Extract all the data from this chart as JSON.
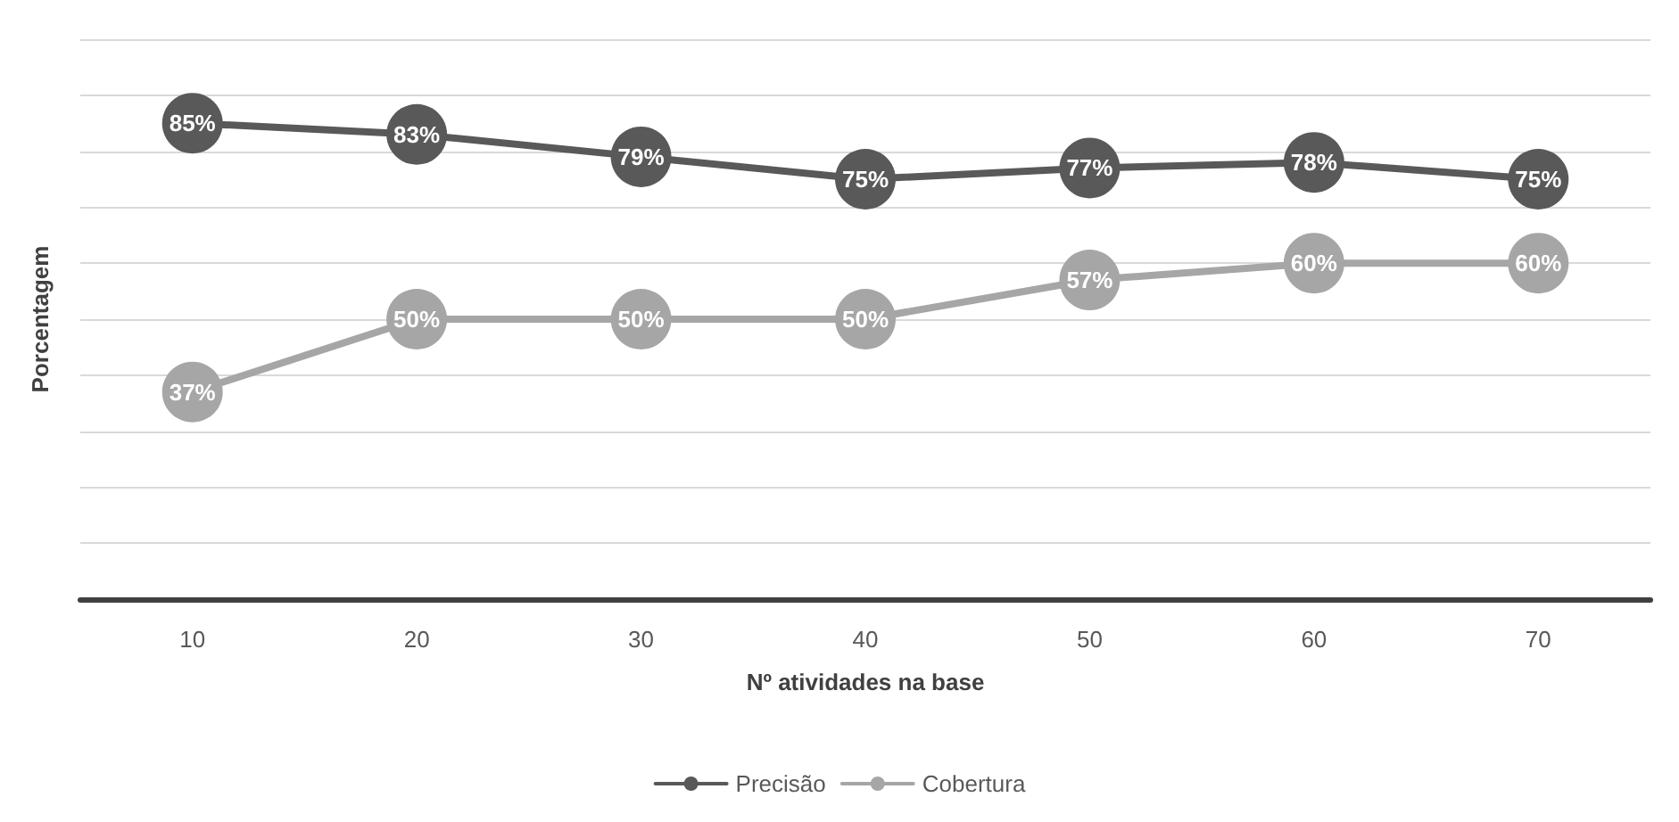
{
  "chart_data": {
    "type": "line",
    "xlabel": "Nº atividades na base",
    "ylabel": "Porcentagem",
    "categories": [
      "10",
      "20",
      "30",
      "40",
      "50",
      "60",
      "70"
    ],
    "series": [
      {
        "name": "Precisão",
        "color": "#595959",
        "values": [
          85,
          83,
          79,
          75,
          77,
          78,
          75
        ],
        "value_labels": [
          "85%",
          "83%",
          "79%",
          "75%",
          "77%",
          "78%",
          "75%"
        ]
      },
      {
        "name": "Cobertura",
        "color": "#a6a6a6",
        "values": [
          37,
          50,
          50,
          50,
          57,
          60,
          60
        ],
        "value_labels": [
          "37%",
          "50%",
          "50%",
          "50%",
          "57%",
          "60%",
          "60%"
        ]
      }
    ],
    "ylim": [
      0,
      100
    ],
    "yticks": [
      {
        "value": 0,
        "label": null
      },
      {
        "value": 10,
        "label": null
      },
      {
        "value": 20,
        "label": null
      },
      {
        "value": 30,
        "label": null
      },
      {
        "value": 40,
        "label": null
      },
      {
        "value": 50,
        "label": null
      },
      {
        "value": 60,
        "label": null
      },
      {
        "value": 70,
        "label": null
      },
      {
        "value": 80,
        "label": null
      },
      {
        "value": 90,
        "label": null
      },
      {
        "value": 100,
        "label": null
      }
    ],
    "tick_labels": "x",
    "grid": "y",
    "legend": "bottom",
    "marker": "circle",
    "line_style": "solid"
  }
}
